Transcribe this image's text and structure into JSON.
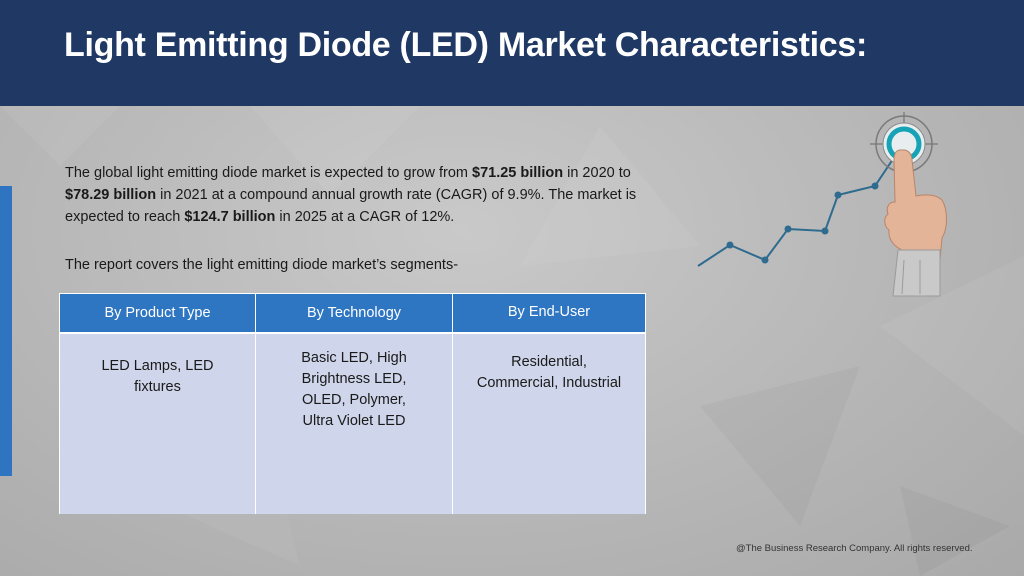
{
  "header": {
    "title": "Light Emitting Diode (LED) Market Characteristics:"
  },
  "intro": {
    "part1": "The global light emitting diode market is expected to grow from ",
    "value_2020": "$71.25 billion",
    "part2": " in 2020 to ",
    "value_2021": "$78.29 billion",
    "part3": " in 2021 at a compound annual growth rate (CAGR) of 9.9%. The market is expected to reach ",
    "value_2025": "$124.7 billion",
    "part4": " in 2025 at a CAGR of 12%."
  },
  "segments_intro": "The report covers the light emitting diode market’s segments-",
  "segments_table": {
    "headers": [
      "By Product Type",
      "By Technology",
      "By End-User"
    ],
    "cells": [
      "LED Lamps, LED fixtures",
      "Basic LED, High Brightness LED, OLED, Polymer, Ultra Violet LED",
      "Residential, Commercial, Industrial"
    ]
  },
  "footer": "@The Business Research Company. All rights reserved.",
  "colors": {
    "header_bg": "#203864",
    "table_header": "#2e75c2",
    "table_cell": "#cfd5ea",
    "accent_bar": "#2e74c0"
  },
  "illustration": {
    "icons": [
      "target-icon",
      "pointing-hand-icon",
      "growth-line-icon"
    ]
  }
}
